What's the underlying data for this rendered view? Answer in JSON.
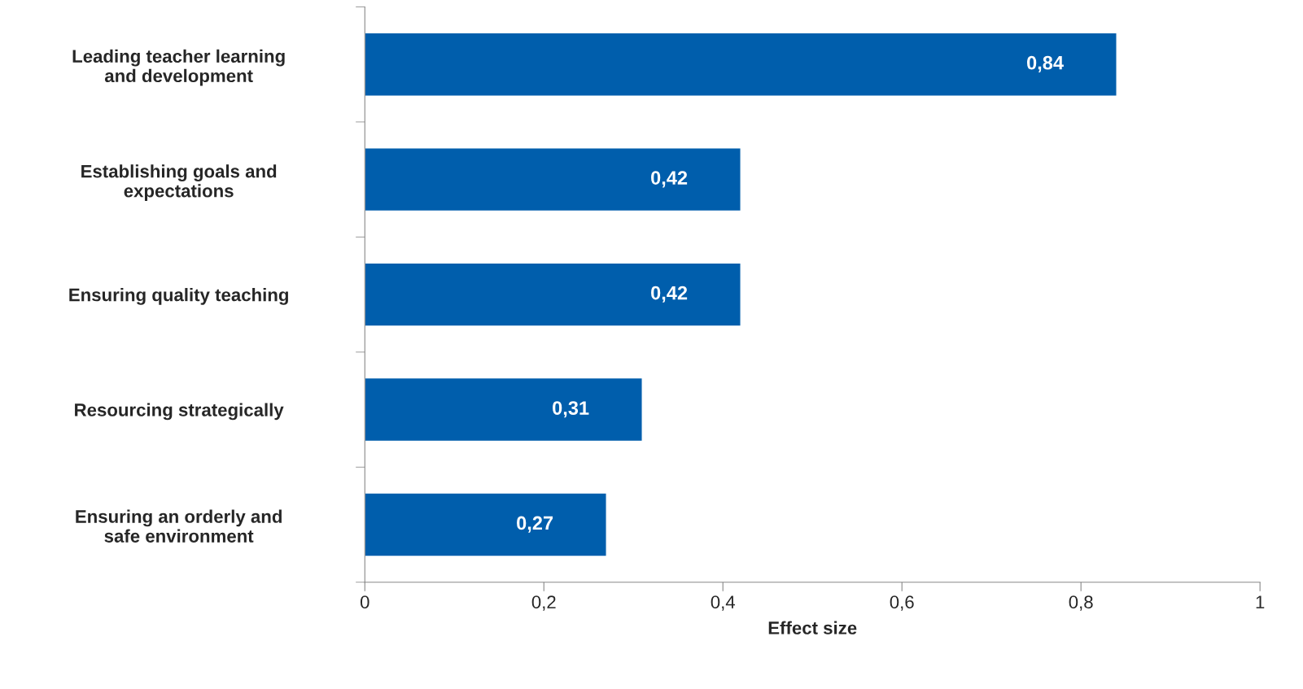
{
  "chart_data": {
    "type": "bar",
    "orientation": "horizontal",
    "xlabel": "Effect size",
    "categories": [
      "Leading teacher learning\nand development",
      "Establishing goals and\nexpectations",
      "Ensuring quality teaching",
      "Resourcing strategically",
      "Ensuring an orderly and\nsafe environment"
    ],
    "values": [
      0.84,
      0.42,
      0.42,
      0.31,
      0.27
    ],
    "value_labels": [
      "0,84",
      "0,42",
      "0,42",
      "0,31",
      "0,27"
    ],
    "color": "#005eac",
    "xlim": [
      0,
      1
    ],
    "xticks": [
      0,
      {
        "value": 0.2,
        "label": "0,2"
      },
      {
        "value": 0.4,
        "label": "0,4"
      },
      {
        "value": 0.6,
        "label": "0,6"
      },
      {
        "value": 0.8,
        "label": "0,8"
      },
      1
    ],
    "grid": false
  }
}
